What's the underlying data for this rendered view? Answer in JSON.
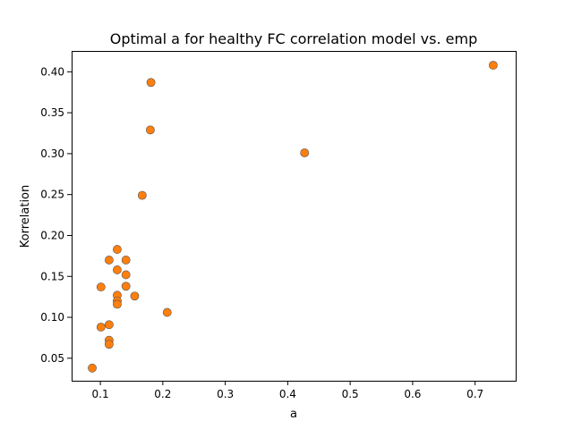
{
  "chart_data": {
    "type": "scatter",
    "title": "Optimal a for healthy FC correlation model vs. emp",
    "xlabel": "a",
    "ylabel": "Korrelation",
    "xlim": [
      0.054,
      0.765
    ],
    "ylim": [
      0.0225,
      0.4255
    ],
    "xticks": [
      0.1,
      0.2,
      0.3,
      0.4,
      0.5,
      0.6,
      0.7
    ],
    "xtick_labels": [
      "0.1",
      "0.2",
      "0.3",
      "0.4",
      "0.5",
      "0.6",
      "0.7"
    ],
    "yticks": [
      0.05,
      0.1,
      0.15,
      0.2,
      0.25,
      0.3,
      0.35,
      0.4
    ],
    "ytick_labels": [
      "0.05",
      "0.10",
      "0.15",
      "0.20",
      "0.25",
      "0.30",
      "0.35",
      "0.40"
    ],
    "grid": false,
    "marker_color": "#ff7f0e",
    "marker_edge_color": "#555555",
    "series": [
      {
        "x": [
          0.729,
          0.427,
          0.181,
          0.18,
          0.167,
          0.207,
          0.127,
          0.114,
          0.141,
          0.127,
          0.141,
          0.101,
          0.141,
          0.127,
          0.155,
          0.127,
          0.127,
          0.114,
          0.101,
          0.114,
          0.114,
          0.087
        ],
        "y": [
          0.408,
          0.301,
          0.387,
          0.329,
          0.249,
          0.106,
          0.183,
          0.17,
          0.17,
          0.158,
          0.152,
          0.137,
          0.138,
          0.127,
          0.126,
          0.12,
          0.116,
          0.091,
          0.088,
          0.072,
          0.067,
          0.038
        ]
      }
    ]
  }
}
